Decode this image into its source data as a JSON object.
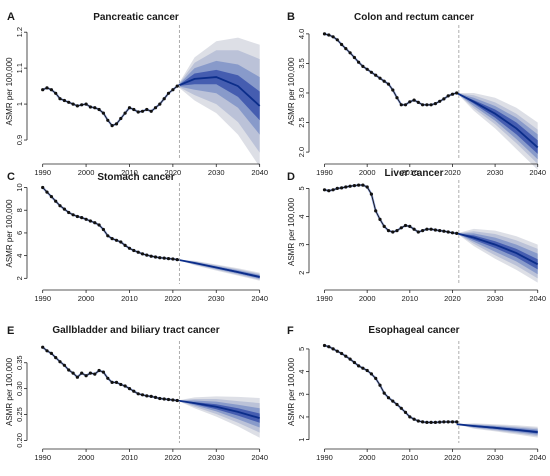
{
  "colors": {
    "band_outer": "#d9dbe3",
    "band_mid": "#b7bfd6",
    "band_inner": "#8396c9",
    "band_core": "#3e57ad",
    "central_line": "#0b2d8a",
    "observed": "#111111",
    "fit_line": "#2f55c4",
    "divider": "#9a9a9a"
  },
  "chart_data": [
    {
      "panel": "A",
      "type": "line",
      "title": "Pancreatic cancer",
      "xlabel": "",
      "ylabel": "ASMR per 100,000",
      "xlim": [
        1988,
        2041
      ],
      "ylim": [
        0.85,
        1.22
      ],
      "xticks": [
        1990,
        2000,
        2010,
        2020,
        2030,
        2040
      ],
      "yticks": [
        0.9,
        1.0,
        1.1,
        1.2
      ],
      "ytick_labels": [
        "0.9",
        "1",
        "1.1",
        "1.2"
      ],
      "divider_x": 2021.5,
      "observed": {
        "x": [
          1990,
          1991,
          1992,
          1993,
          1994,
          1995,
          1996,
          1997,
          1998,
          1999,
          2000,
          2001,
          2002,
          2003,
          2004,
          2005,
          2006,
          2007,
          2008,
          2009,
          2010,
          2011,
          2012,
          2013,
          2014,
          2015,
          2016,
          2017,
          2018,
          2019,
          2020,
          2021
        ],
        "y": [
          1.04,
          1.045,
          1.04,
          1.03,
          1.015,
          1.01,
          1.005,
          1.0,
          0.995,
          0.998,
          1.0,
          0.992,
          0.99,
          0.985,
          0.975,
          0.955,
          0.94,
          0.945,
          0.96,
          0.975,
          0.99,
          0.985,
          0.978,
          0.98,
          0.985,
          0.98,
          0.99,
          1.0,
          1.015,
          1.03,
          1.04,
          1.05
        ]
      },
      "projection": {
        "x": [
          2021,
          2025,
          2030,
          2035,
          2040
        ],
        "mean": [
          1.05,
          1.07,
          1.075,
          1.05,
          0.995
        ],
        "band_50": [
          [
            1.05,
            1.05
          ],
          [
            1.055,
            1.085
          ],
          [
            1.055,
            1.095
          ],
          [
            1.02,
            1.08
          ],
          [
            0.955,
            1.035
          ]
        ],
        "band_80": [
          [
            1.05,
            1.05
          ],
          [
            1.04,
            1.1
          ],
          [
            1.03,
            1.12
          ],
          [
            0.99,
            1.11
          ],
          [
            0.915,
            1.075
          ]
        ],
        "band_95": [
          [
            1.05,
            1.05
          ],
          [
            1.025,
            1.115
          ],
          [
            1.0,
            1.15
          ],
          [
            0.95,
            1.15
          ],
          [
            0.865,
            1.125
          ]
        ],
        "band_99": [
          [
            1.05,
            1.05
          ],
          [
            1.01,
            1.13
          ],
          [
            0.975,
            1.175
          ],
          [
            0.915,
            1.185
          ],
          [
            0.825,
            1.165
          ]
        ]
      }
    },
    {
      "panel": "B",
      "type": "line",
      "title": "Colon and rectum cancer",
      "xlabel": "",
      "ylabel": "ASMR per 100,000",
      "xlim": [
        1988,
        2041
      ],
      "ylim": [
        1.9,
        4.15
      ],
      "xticks": [
        1990,
        2000,
        2010,
        2020,
        2030,
        2040
      ],
      "yticks": [
        2.0,
        2.5,
        3.0,
        3.5,
        4.0
      ],
      "ytick_labels": [
        "2.0",
        "2.5",
        "3.0",
        "3.5",
        "4.0"
      ],
      "divider_x": 2021.5,
      "observed": {
        "x": [
          1990,
          1991,
          1992,
          1993,
          1994,
          1995,
          1996,
          1997,
          1998,
          1999,
          2000,
          2001,
          2002,
          2003,
          2004,
          2005,
          2006,
          2007,
          2008,
          2009,
          2010,
          2011,
          2012,
          2013,
          2014,
          2015,
          2016,
          2017,
          2018,
          2019,
          2020,
          2021
        ],
        "y": [
          4.0,
          3.98,
          3.95,
          3.9,
          3.82,
          3.75,
          3.68,
          3.6,
          3.52,
          3.45,
          3.4,
          3.35,
          3.3,
          3.25,
          3.2,
          3.15,
          3.05,
          2.92,
          2.8,
          2.8,
          2.85,
          2.88,
          2.84,
          2.8,
          2.8,
          2.8,
          2.82,
          2.86,
          2.9,
          2.95,
          2.98,
          3.0
        ]
      },
      "projection": {
        "x": [
          2021,
          2025,
          2030,
          2035,
          2040
        ],
        "mean": [
          3.0,
          2.85,
          2.65,
          2.4,
          2.08
        ],
        "band_50": [
          [
            3.0,
            3.0
          ],
          [
            2.82,
            2.88
          ],
          [
            2.58,
            2.72
          ],
          [
            2.3,
            2.5
          ],
          [
            1.97,
            2.2
          ]
        ],
        "band_80": [
          [
            3.0,
            3.0
          ],
          [
            2.78,
            2.92
          ],
          [
            2.53,
            2.78
          ],
          [
            2.22,
            2.58
          ],
          [
            1.88,
            2.3
          ]
        ],
        "band_95": [
          [
            3.0,
            3.0
          ],
          [
            2.74,
            2.96
          ],
          [
            2.47,
            2.84
          ],
          [
            2.15,
            2.65
          ],
          [
            1.8,
            2.38
          ]
        ],
        "band_99": [
          [
            3.0,
            3.0
          ],
          [
            2.7,
            3.0
          ],
          [
            2.4,
            2.92
          ],
          [
            2.05,
            2.75
          ],
          [
            1.7,
            2.5
          ]
        ]
      }
    },
    {
      "panel": "C",
      "type": "line",
      "title": "Stomach cancer",
      "xlabel": "",
      "ylabel": "ASMR per 100,000",
      "xlim": [
        1988,
        2041
      ],
      "ylim": [
        1.5,
        10.4
      ],
      "xticks": [
        1990,
        2000,
        2010,
        2020,
        2030,
        2040
      ],
      "yticks": [
        2,
        4,
        6,
        8,
        10
      ],
      "ytick_labels": [
        "2",
        "4",
        "6",
        "8",
        "10"
      ],
      "divider_x": 2021.5,
      "observed": {
        "x": [
          1990,
          1991,
          1992,
          1993,
          1994,
          1995,
          1996,
          1997,
          1998,
          1999,
          2000,
          2001,
          2002,
          2003,
          2004,
          2005,
          2006,
          2007,
          2008,
          2009,
          2010,
          2011,
          2012,
          2013,
          2014,
          2015,
          2016,
          2017,
          2018,
          2019,
          2020,
          2021
        ],
        "y": [
          10.0,
          9.6,
          9.2,
          8.8,
          8.4,
          8.1,
          7.8,
          7.6,
          7.45,
          7.35,
          7.2,
          7.05,
          6.9,
          6.7,
          6.3,
          5.75,
          5.5,
          5.35,
          5.2,
          4.9,
          4.65,
          4.45,
          4.3,
          4.15,
          4.05,
          3.95,
          3.88,
          3.82,
          3.78,
          3.74,
          3.7,
          3.65
        ]
      },
      "projection": {
        "x": [
          2021,
          2025,
          2030,
          2035,
          2040
        ],
        "mean": [
          3.65,
          3.35,
          2.95,
          2.55,
          2.12
        ],
        "band_50": [
          [
            3.65,
            3.65
          ],
          [
            3.3,
            3.4
          ],
          [
            2.88,
            3.02
          ],
          [
            2.47,
            2.64
          ],
          [
            2.02,
            2.22
          ]
        ],
        "band_80": [
          [
            3.65,
            3.65
          ],
          [
            3.25,
            3.45
          ],
          [
            2.82,
            3.08
          ],
          [
            2.4,
            2.72
          ],
          [
            1.95,
            2.3
          ]
        ],
        "band_95": [
          [
            3.65,
            3.65
          ],
          [
            3.2,
            3.5
          ],
          [
            2.75,
            3.15
          ],
          [
            2.32,
            2.8
          ],
          [
            1.87,
            2.4
          ]
        ],
        "band_99": [
          [
            3.65,
            3.65
          ],
          [
            3.15,
            3.55
          ],
          [
            2.68,
            3.22
          ],
          [
            2.24,
            2.88
          ],
          [
            1.78,
            2.5
          ]
        ]
      }
    },
    {
      "panel": "D",
      "type": "line",
      "title": "Liver cancer",
      "xlabel": "",
      "ylabel": "ASMR per 100,000",
      "xlim": [
        1988,
        2041
      ],
      "ylim": [
        1.6,
        5.3
      ],
      "xticks": [
        1990,
        2000,
        2010,
        2020,
        2030,
        2040
      ],
      "yticks": [
        2,
        3,
        4,
        5
      ],
      "ytick_labels": [
        "2",
        "3",
        "4",
        "5"
      ],
      "divider_x": 2021.5,
      "observed": {
        "x": [
          1990,
          1991,
          1992,
          1993,
          1994,
          1995,
          1996,
          1997,
          1998,
          1999,
          2000,
          2001,
          2002,
          2003,
          2004,
          2005,
          2006,
          2007,
          2008,
          2009,
          2010,
          2011,
          2012,
          2013,
          2014,
          2015,
          2016,
          2017,
          2018,
          2019,
          2020,
          2021
        ],
        "y": [
          4.95,
          4.92,
          4.95,
          5.0,
          5.02,
          5.05,
          5.08,
          5.1,
          5.12,
          5.12,
          5.05,
          4.8,
          4.2,
          3.9,
          3.65,
          3.5,
          3.45,
          3.5,
          3.6,
          3.68,
          3.65,
          3.55,
          3.45,
          3.5,
          3.55,
          3.55,
          3.52,
          3.5,
          3.48,
          3.45,
          3.42,
          3.4
        ]
      },
      "projection": {
        "x": [
          2021,
          2025,
          2030,
          2035,
          2040
        ],
        "mean": [
          3.4,
          3.25,
          3.0,
          2.7,
          2.3
        ],
        "band_50": [
          [
            3.4,
            3.4
          ],
          [
            3.17,
            3.33
          ],
          [
            2.88,
            3.12
          ],
          [
            2.55,
            2.85
          ],
          [
            2.12,
            2.48
          ]
        ],
        "band_80": [
          [
            3.4,
            3.4
          ],
          [
            3.1,
            3.4
          ],
          [
            2.75,
            3.25
          ],
          [
            2.4,
            3.0
          ],
          [
            1.95,
            2.68
          ]
        ],
        "band_95": [
          [
            3.4,
            3.4
          ],
          [
            3.03,
            3.48
          ],
          [
            2.62,
            3.38
          ],
          [
            2.25,
            3.15
          ],
          [
            1.8,
            2.85
          ]
        ],
        "band_99": [
          [
            3.4,
            3.4
          ],
          [
            2.95,
            3.56
          ],
          [
            2.5,
            3.5
          ],
          [
            2.1,
            3.3
          ],
          [
            1.65,
            3.0
          ]
        ]
      }
    },
    {
      "panel": "E",
      "type": "line",
      "title": "Gallbladder and biliary tract cancer",
      "xlabel": "",
      "ylabel": "ASMR per 100,000",
      "xlim": [
        1988,
        2041
      ],
      "ylim": [
        0.195,
        0.392
      ],
      "xticks": [
        1990,
        2000,
        2010,
        2020,
        2030,
        2040
      ],
      "yticks": [
        0.2,
        0.25,
        0.3,
        0.35
      ],
      "ytick_labels": [
        "0.20",
        "0.25",
        "0.30",
        "0.35"
      ],
      "divider_x": 2021.5,
      "observed": {
        "x": [
          1990,
          1991,
          1992,
          1993,
          1994,
          1995,
          1996,
          1997,
          1998,
          1999,
          2000,
          2001,
          2002,
          2003,
          2004,
          2005,
          2006,
          2007,
          2008,
          2009,
          2010,
          2011,
          2012,
          2013,
          2014,
          2015,
          2016,
          2017,
          2018,
          2019,
          2020,
          2021
        ],
        "y": [
          0.38,
          0.373,
          0.368,
          0.36,
          0.352,
          0.345,
          0.336,
          0.33,
          0.322,
          0.33,
          0.325,
          0.33,
          0.328,
          0.335,
          0.332,
          0.32,
          0.312,
          0.312,
          0.308,
          0.305,
          0.3,
          0.295,
          0.29,
          0.288,
          0.286,
          0.285,
          0.283,
          0.281,
          0.28,
          0.279,
          0.278,
          0.277
        ]
      },
      "projection": {
        "x": [
          2021,
          2025,
          2030,
          2035,
          2040
        ],
        "mean": [
          0.277,
          0.272,
          0.265,
          0.255,
          0.243
        ],
        "band_50": [
          [
            0.277,
            0.277
          ],
          [
            0.27,
            0.274
          ],
          [
            0.26,
            0.27
          ],
          [
            0.248,
            0.262
          ],
          [
            0.234,
            0.252
          ]
        ],
        "band_80": [
          [
            0.277,
            0.277
          ],
          [
            0.268,
            0.277
          ],
          [
            0.256,
            0.275
          ],
          [
            0.241,
            0.269
          ],
          [
            0.225,
            0.262
          ]
        ],
        "band_95": [
          [
            0.277,
            0.277
          ],
          [
            0.265,
            0.28
          ],
          [
            0.251,
            0.28
          ],
          [
            0.234,
            0.276
          ],
          [
            0.215,
            0.272
          ]
        ],
        "band_99": [
          [
            0.277,
            0.277
          ],
          [
            0.262,
            0.283
          ],
          [
            0.246,
            0.285
          ],
          [
            0.227,
            0.284
          ],
          [
            0.205,
            0.282
          ]
        ]
      }
    },
    {
      "panel": "F",
      "type": "line",
      "title": "Esophageal cancer",
      "xlabel": "",
      "ylabel": "ASMR per 100,000",
      "xlim": [
        1988,
        2041
      ],
      "ylim": [
        0.85,
        5.35
      ],
      "xticks": [
        1990,
        2000,
        2010,
        2020,
        2030,
        2040
      ],
      "yticks": [
        1,
        2,
        3,
        4,
        5
      ],
      "ytick_labels": [
        "1",
        "2",
        "3",
        "4",
        "5"
      ],
      "divider_x": 2021.5,
      "observed": {
        "x": [
          1990,
          1991,
          1992,
          1993,
          1994,
          1995,
          1996,
          1997,
          1998,
          1999,
          2000,
          2001,
          2002,
          2003,
          2004,
          2005,
          2006,
          2007,
          2008,
          2009,
          2010,
          2011,
          2012,
          2013,
          2014,
          2015,
          2016,
          2017,
          2018,
          2019,
          2020,
          2021
        ],
        "y": [
          5.15,
          5.1,
          5.0,
          4.9,
          4.8,
          4.68,
          4.55,
          4.4,
          4.25,
          4.15,
          4.05,
          3.9,
          3.7,
          3.4,
          3.05,
          2.85,
          2.7,
          2.55,
          2.38,
          2.2,
          2.0,
          1.9,
          1.82,
          1.78,
          1.76,
          1.76,
          1.76,
          1.77,
          1.78,
          1.78,
          1.78,
          1.78
        ]
      },
      "projection": {
        "x": [
          2021,
          2025,
          2030,
          2035,
          2040
        ],
        "mean": [
          1.68,
          1.6,
          1.52,
          1.43,
          1.33
        ],
        "band_50": [
          [
            1.68,
            1.68
          ],
          [
            1.57,
            1.63
          ],
          [
            1.48,
            1.56
          ],
          [
            1.38,
            1.48
          ],
          [
            1.27,
            1.39
          ]
        ],
        "band_80": [
          [
            1.68,
            1.68
          ],
          [
            1.54,
            1.66
          ],
          [
            1.44,
            1.6
          ],
          [
            1.33,
            1.53
          ],
          [
            1.21,
            1.45
          ]
        ],
        "band_95": [
          [
            1.68,
            1.68
          ],
          [
            1.51,
            1.69
          ],
          [
            1.4,
            1.64
          ],
          [
            1.28,
            1.58
          ],
          [
            1.15,
            1.51
          ]
        ],
        "band_99": [
          [
            1.68,
            1.68
          ],
          [
            1.48,
            1.72
          ],
          [
            1.36,
            1.68
          ],
          [
            1.23,
            1.63
          ],
          [
            1.09,
            1.57
          ]
        ]
      }
    }
  ]
}
